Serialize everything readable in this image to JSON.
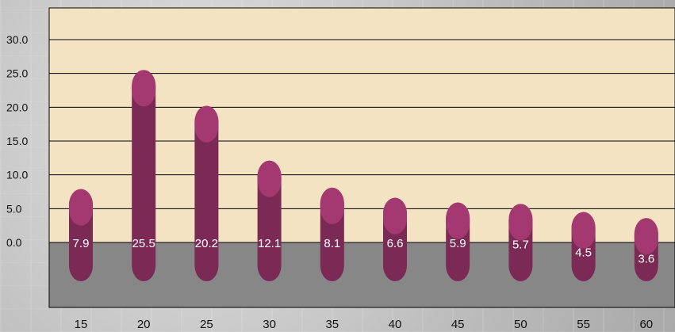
{
  "chart_data": {
    "type": "bar",
    "title": "",
    "xlabel": "",
    "ylabel": "",
    "categories": [
      "15",
      "20",
      "25",
      "30",
      "35",
      "40",
      "45",
      "50",
      "55",
      "60"
    ],
    "values": [
      7.9,
      25.5,
      20.2,
      12.1,
      8.1,
      6.6,
      5.9,
      5.7,
      4.5,
      3.6
    ],
    "data_labels": [
      "7.9",
      "25.5",
      "20.2",
      "12.1",
      "8.1",
      "6.6",
      "5.9",
      "5.7",
      "4.5",
      "3.6"
    ],
    "yticks": [
      "30.0",
      "25.0",
      "20.0",
      "15.0",
      "10.0",
      "5.0",
      "0.0"
    ],
    "ylim": [
      0,
      30
    ],
    "grid": true,
    "colors": {
      "plot_upper": "#f4e3c3",
      "plot_lower": "#878787",
      "bar_body": "#7b2a55",
      "bar_cap": "#a33970",
      "gridline": "#000000",
      "label": "#ffffff"
    }
  }
}
